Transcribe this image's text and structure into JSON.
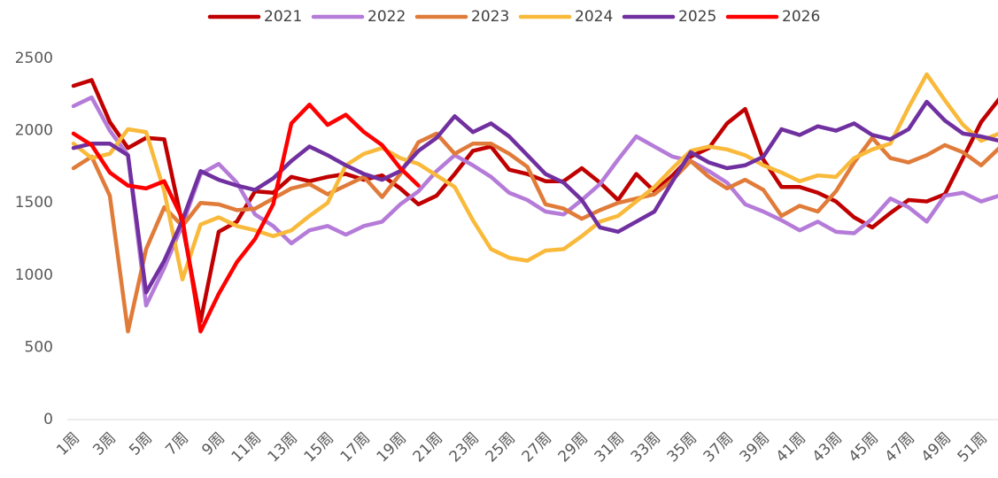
{
  "chart_data": {
    "type": "line",
    "categories": [
      "1周",
      null,
      "3周",
      null,
      "5周",
      null,
      "7周",
      null,
      "9周",
      null,
      "11周",
      null,
      "13周",
      null,
      "15周",
      null,
      "17周",
      null,
      "19周",
      null,
      "21周",
      null,
      "23周",
      null,
      "25周",
      null,
      "27周",
      null,
      "29周",
      null,
      "31周",
      null,
      "33周",
      null,
      "35周",
      null,
      "37周",
      null,
      "39周",
      null,
      "41周",
      null,
      "43周",
      null,
      "45周",
      null,
      "47周",
      null,
      "49周",
      null,
      "51周",
      null
    ],
    "series": [
      {
        "name": "2021",
        "color": "#c00000",
        "values": [
          2310,
          2350,
          2060,
          1880,
          1950,
          1940,
          1350,
          680,
          1300,
          1370,
          1580,
          1570,
          1680,
          1650,
          1680,
          1700,
          1660,
          1690,
          1600,
          1490,
          1550,
          1700,
          1860,
          1890,
          1730,
          1700,
          1650,
          1650,
          1740,
          1640,
          1520,
          1700,
          1580,
          1690,
          1820,
          1880,
          2050,
          2150,
          1800,
          1610,
          1610,
          1570,
          1510,
          1400,
          1330,
          1430,
          1520,
          1510,
          1560,
          1810,
          2060,
          2220
        ]
      },
      {
        "name": "2022",
        "color": "#b57bd8",
        "values": [
          2170,
          2230,
          2000,
          1830,
          790,
          1050,
          1350,
          1700,
          1770,
          1640,
          1420,
          1340,
          1220,
          1310,
          1340,
          1280,
          1340,
          1370,
          1490,
          1580,
          1720,
          1830,
          1760,
          1680,
          1570,
          1520,
          1440,
          1420,
          1520,
          1630,
          1800,
          1960,
          1890,
          1820,
          1790,
          1720,
          1640,
          1490,
          1440,
          1380,
          1310,
          1370,
          1300,
          1290,
          1390,
          1530,
          1470,
          1370,
          1550,
          1570,
          1510,
          1550
        ]
      },
      {
        "name": "2023",
        "color": "#e07b39",
        "values": [
          1740,
          1820,
          1550,
          610,
          1180,
          1470,
          1340,
          1500,
          1490,
          1450,
          1460,
          1530,
          1600,
          1630,
          1560,
          1620,
          1680,
          1540,
          1700,
          1920,
          1980,
          1840,
          1910,
          1910,
          1840,
          1750,
          1490,
          1460,
          1390,
          1450,
          1500,
          1530,
          1560,
          1660,
          1790,
          1680,
          1600,
          1660,
          1590,
          1410,
          1480,
          1440,
          1580,
          1780,
          1950,
          1810,
          1780,
          1830,
          1900,
          1850,
          1760,
          1880
        ]
      },
      {
        "name": "2024",
        "color": "#f9b93a",
        "values": [
          1910,
          1810,
          1840,
          2010,
          1990,
          1580,
          970,
          1350,
          1400,
          1340,
          1310,
          1270,
          1310,
          1410,
          1500,
          1760,
          1840,
          1880,
          1810,
          1770,
          1690,
          1610,
          1380,
          1180,
          1120,
          1100,
          1170,
          1180,
          1270,
          1370,
          1410,
          1510,
          1610,
          1740,
          1860,
          1890,
          1870,
          1830,
          1760,
          1710,
          1650,
          1690,
          1680,
          1810,
          1870,
          1910,
          2160,
          2390,
          2210,
          2040,
          1930,
          1980
        ]
      },
      {
        "name": "2025",
        "color": "#7030a0",
        "values": [
          1880,
          1910,
          1910,
          1830,
          880,
          1100,
          1380,
          1720,
          1660,
          1620,
          1590,
          1670,
          1790,
          1890,
          1830,
          1760,
          1700,
          1660,
          1720,
          1860,
          1950,
          2100,
          1990,
          2050,
          1960,
          1830,
          1700,
          1640,
          1520,
          1330,
          1300,
          1370,
          1440,
          1650,
          1850,
          1780,
          1740,
          1760,
          1820,
          2010,
          1970,
          2030,
          2000,
          2050,
          1970,
          1940,
          2010,
          2200,
          2070,
          1980,
          1960,
          1930
        ]
      },
      {
        "name": "2026",
        "color": "#ff0000",
        "values": [
          1980,
          1900,
          1710,
          1620,
          1600,
          1650,
          1390,
          610,
          870,
          1090,
          1250,
          1490,
          2050,
          2180,
          2040,
          2110,
          1990,
          1900,
          1740,
          1620,
          null,
          null,
          null,
          null,
          null,
          null,
          null,
          null,
          null,
          null,
          null,
          null,
          null,
          null,
          null,
          null,
          null,
          null,
          null,
          null,
          null,
          null,
          null,
          null,
          null,
          null,
          null,
          null,
          null,
          null,
          null,
          null
        ]
      }
    ],
    "ylim": [
      0,
      2500
    ],
    "yticks": [
      0,
      500,
      1000,
      1500,
      2000,
      2500
    ],
    "grid": false,
    "legend": "top"
  }
}
